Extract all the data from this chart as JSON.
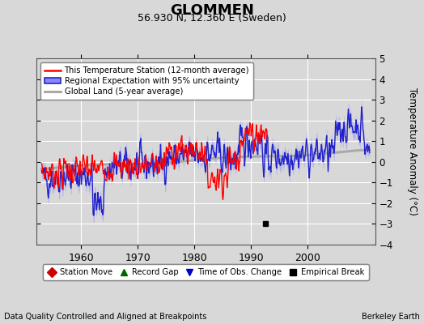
{
  "title": "GLOMMEN",
  "subtitle": "56.930 N, 12.360 E (Sweden)",
  "ylabel": "Temperature Anomaly (°C)",
  "xlabel_bottom": "Data Quality Controlled and Aligned at Breakpoints",
  "xlabel_right": "Berkeley Earth",
  "ylim": [
    -4,
    5
  ],
  "yticks": [
    -4,
    -3,
    -2,
    -1,
    0,
    1,
    2,
    3,
    4,
    5
  ],
  "xlim": [
    1952,
    2012
  ],
  "xticks": [
    1960,
    1970,
    1980,
    1990,
    2000
  ],
  "background_color": "#d8d8d8",
  "plot_background": "#d8d8d8",
  "grid_color": "#ffffff",
  "empirical_break_x": 1992.5,
  "empirical_break_y": -3.0,
  "red_line_color": "#ff0000",
  "blue_line_color": "#2222cc",
  "blue_fill_color": "#8888ff",
  "gray_line_color": "#aaaaaa",
  "legend1_labels": [
    "This Temperature Station (12-month average)",
    "Regional Expectation with 95% uncertainty",
    "Global Land (5-year average)"
  ],
  "legend2_labels": [
    "Station Move",
    "Record Gap",
    "Time of Obs. Change",
    "Empirical Break"
  ],
  "legend2_markers": [
    "D",
    "^",
    "v",
    "s"
  ],
  "legend2_colors": [
    "#cc0000",
    "#006600",
    "#0000cc",
    "#000000"
  ]
}
